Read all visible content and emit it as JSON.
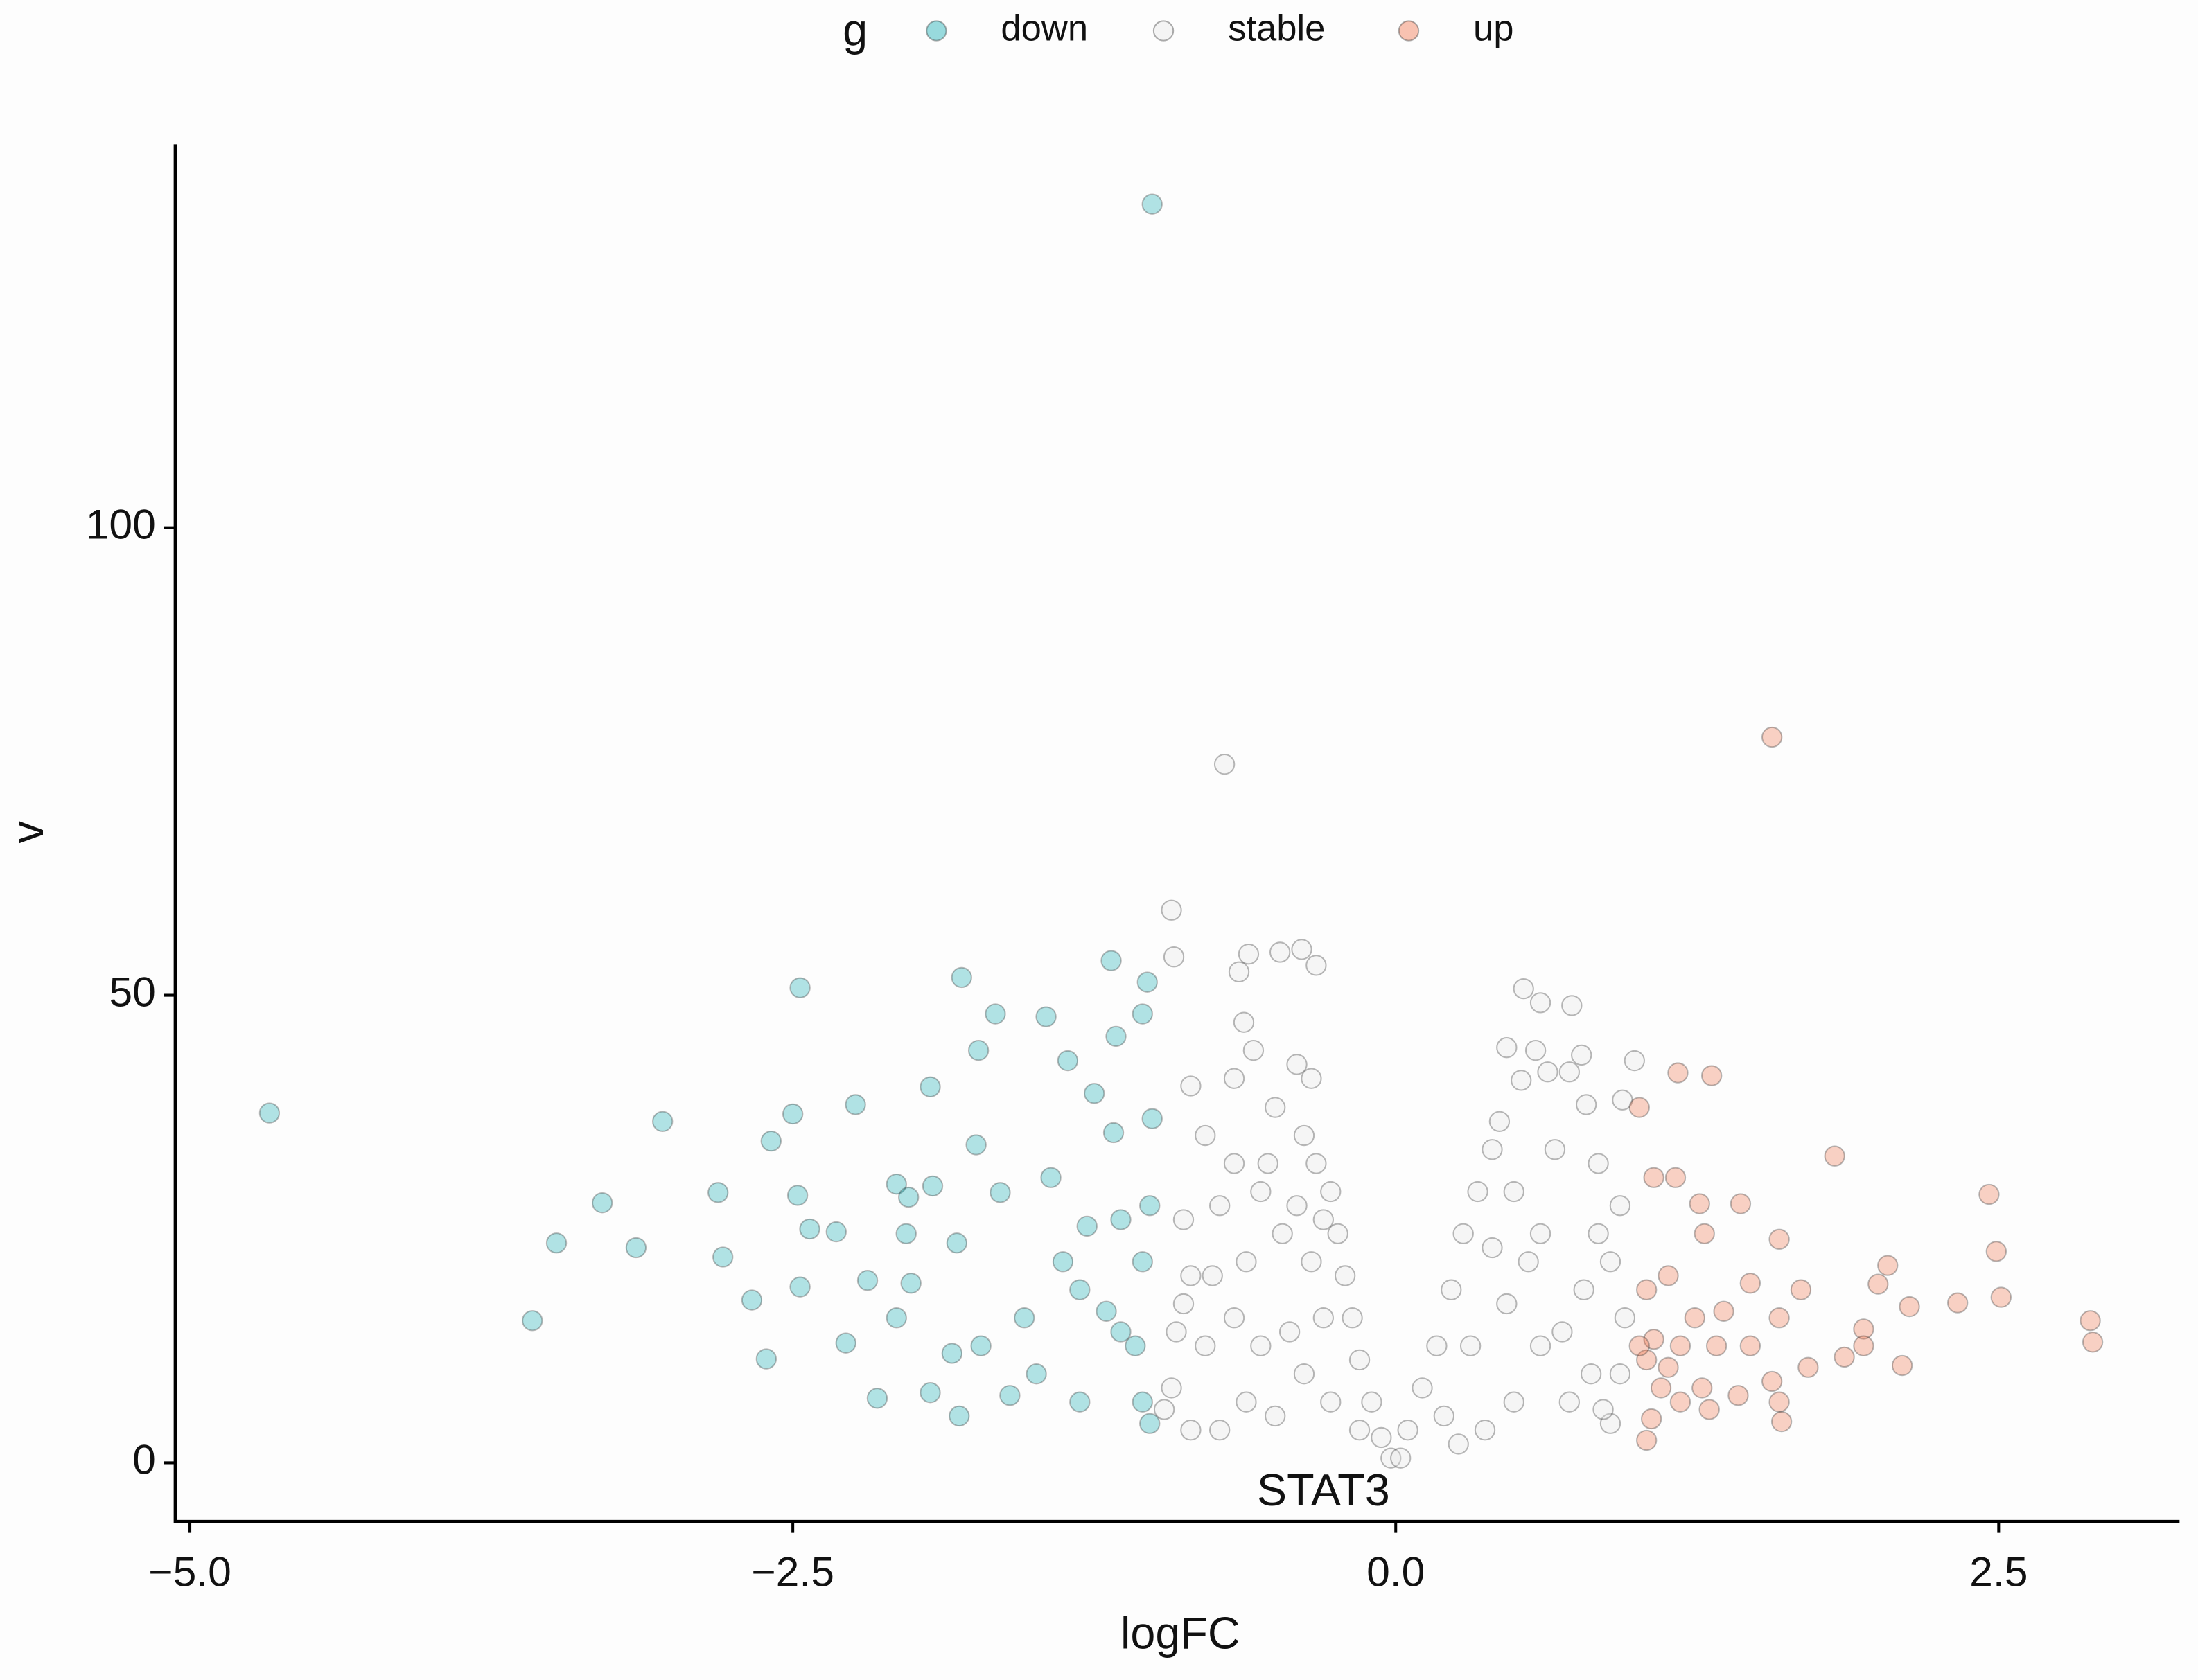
{
  "chart_data": {
    "type": "scatter",
    "x_label": "logFC",
    "y_label": "v",
    "legend_title": "g",
    "legend_position": "top",
    "grid": false,
    "xlim": [
      -5.06,
      3.25
    ],
    "ylim": [
      -6.3,
      141
    ],
    "xticks": [
      {
        "value": -5,
        "label": "−5.0"
      },
      {
        "value": -2.5,
        "label": "−2.5"
      },
      {
        "value": 0,
        "label": "0.0"
      },
      2.5
    ],
    "yticks": [
      0,
      50,
      100
    ],
    "series": [
      {
        "name": "down",
        "color": "#00a5ad",
        "x": [
          -4.67,
          -3.58,
          -3.48,
          -3.29,
          -3.15,
          -3.04,
          -2.81,
          -2.79,
          -2.67,
          -2.61,
          -2.59,
          -2.5,
          -2.47,
          -2.48,
          -2.43,
          -2.47,
          -2.32,
          -2.28,
          -2.24,
          -2.19,
          -2.15,
          -2.07,
          -2.02,
          -2.03,
          -1.93,
          -1.93,
          -1.92,
          -1.82,
          -1.81,
          -1.8,
          -1.74,
          -1.73,
          -1.66,
          -1.64,
          -1.45,
          -1.36,
          -1.18,
          -1.16,
          -1.03,
          -1.05,
          -1.01,
          -1.01,
          -1.25,
          -1.43,
          -1.17,
          -1.38,
          -1.54,
          -1.72,
          -1.31,
          -1.14,
          -1.05,
          -1.02,
          -1.08,
          -1.2,
          -1.49,
          -1.6,
          -1.31,
          -1.05,
          -1.14,
          -2.07,
          -2.01,
          -1.84,
          -1.02,
          -1.28
        ],
        "values": [
          37.4,
          15.2,
          23.5,
          27.8,
          23.0,
          36.5,
          28.9,
          22.0,
          17.4,
          11.1,
          34.4,
          37.3,
          50.8,
          28.6,
          25.0,
          18.8,
          24.7,
          12.8,
          38.3,
          19.5,
          6.9,
          29.8,
          28.4,
          24.5,
          7.5,
          40.2,
          29.6,
          23.5,
          5.0,
          51.9,
          34.0,
          44.1,
          48.0,
          28.9,
          47.7,
          43.0,
          53.7,
          45.6,
          51.4,
          48.0,
          36.8,
          134.6,
          39.5,
          30.5,
          35.3,
          21.5,
          15.5,
          12.5,
          18.5,
          14.0,
          6.5,
          4.2,
          12.5,
          16.2,
          9.5,
          7.2,
          6.5,
          21.5,
          26.0,
          15.5,
          19.2,
          11.7,
          27.5,
          25.3
        ]
      },
      {
        "name": "stable",
        "color": "#e6e6e6",
        "x": [
          -0.71,
          -0.93,
          -0.92,
          -0.61,
          -0.65,
          -0.48,
          -0.39,
          -0.33,
          -0.63,
          -0.59,
          -0.41,
          -0.35,
          -0.85,
          -0.67,
          -0.5,
          -0.38,
          -0.33,
          -0.27,
          -0.24,
          -0.21,
          -0.18,
          -0.15,
          -0.1,
          -0.06,
          -0.02,
          0.02,
          0.05,
          0.11,
          0.17,
          0.23,
          0.28,
          0.34,
          0.4,
          0.43,
          0.46,
          0.53,
          0.6,
          0.73,
          0.58,
          0.77,
          0.63,
          0.72,
          0.52,
          0.79,
          0.94,
          0.99,
          0.66,
          0.84,
          0.93,
          0.89,
          0.95,
          0.93,
          0.89,
          0.72,
          0.6,
          0.49,
          0.37,
          0.26,
          0.78,
          0.6,
          0.46,
          0.31,
          0.2,
          0.4,
          0.55,
          0.69,
          0.81,
          -0.15,
          -0.27,
          -0.38,
          -0.5,
          -0.62,
          -0.73,
          -0.85,
          -0.93,
          -0.91,
          -0.79,
          -0.67,
          -0.56,
          -0.44,
          -0.3,
          -0.35,
          -0.47,
          -0.62,
          -0.76,
          -0.88,
          -0.73,
          -0.56,
          -0.41,
          -0.3,
          -0.79,
          -0.67,
          -0.53,
          -0.85,
          -0.88,
          -0.96,
          0.86,
          0.84,
          0.49
        ],
        "values": [
          74.7,
          59.1,
          54.1,
          54.4,
          52.5,
          54.6,
          54.9,
          53.2,
          47.1,
          44.1,
          42.6,
          41.1,
          40.3,
          41.1,
          38.0,
          35.0,
          32.0,
          29.0,
          24.5,
          20.0,
          15.5,
          11.0,
          6.5,
          2.7,
          0.5,
          0.5,
          3.5,
          8.0,
          12.5,
          18.5,
          24.5,
          29.0,
          33.5,
          36.5,
          44.4,
          50.7,
          49.2,
          48.9,
          44.1,
          43.6,
          41.8,
          41.8,
          40.9,
          38.3,
          38.8,
          43.0,
          33.5,
          32.0,
          27.5,
          21.5,
          15.5,
          9.5,
          4.2,
          6.5,
          12.5,
          6.5,
          3.5,
          2.0,
          18.5,
          24.5,
          17.0,
          12.5,
          5.0,
          23.0,
          21.5,
          14.0,
          9.5,
          3.5,
          6.5,
          9.5,
          5.0,
          6.5,
          3.5,
          3.5,
          8.0,
          14.0,
          12.5,
          15.5,
          12.5,
          14.0,
          15.5,
          21.5,
          24.5,
          21.5,
          20.0,
          26.0,
          27.5,
          29.0,
          27.5,
          26.0,
          35.0,
          32.0,
          32.0,
          20.0,
          17.0,
          5.7,
          5.7,
          24.5,
          29.0
        ]
      },
      {
        "name": "up",
        "color": "#ef6a3e",
        "x": [
          1.56,
          1.01,
          1.17,
          1.31,
          1.82,
          2.46,
          2.49,
          2.88,
          2.89,
          2.51,
          2.33,
          2.13,
          2.04,
          2.1,
          1.94,
          1.94,
          1.86,
          2.0,
          1.59,
          1.43,
          1.26,
          1.16,
          1.07,
          1.28,
          1.13,
          1.04,
          1.47,
          1.68,
          1.59,
          1.47,
          1.33,
          1.18,
          1.07,
          1.04,
          1.1,
          1.18,
          1.06,
          1.04,
          1.3,
          1.42,
          1.59,
          1.6,
          1.71,
          1.56,
          1.24,
          1.36,
          1.13,
          1.01,
          1.27
        ],
        "values": [
          77.6,
          38.0,
          41.7,
          41.4,
          32.8,
          28.7,
          22.6,
          15.2,
          12.9,
          17.7,
          17.1,
          16.7,
          21.1,
          10.4,
          14.3,
          12.5,
          11.3,
          19.1,
          23.9,
          27.7,
          27.7,
          30.5,
          30.5,
          24.5,
          20.0,
          18.5,
          19.2,
          18.5,
          15.5,
          12.5,
          12.5,
          12.5,
          13.2,
          11.0,
          8.0,
          6.5,
          4.7,
          2.4,
          5.7,
          7.2,
          6.5,
          4.4,
          10.2,
          8.7,
          15.5,
          16.2,
          10.2,
          12.5,
          8.0
        ]
      }
    ],
    "annotations": [
      {
        "text": "STAT3",
        "x": -0.3,
        "y": -3.3
      }
    ]
  }
}
